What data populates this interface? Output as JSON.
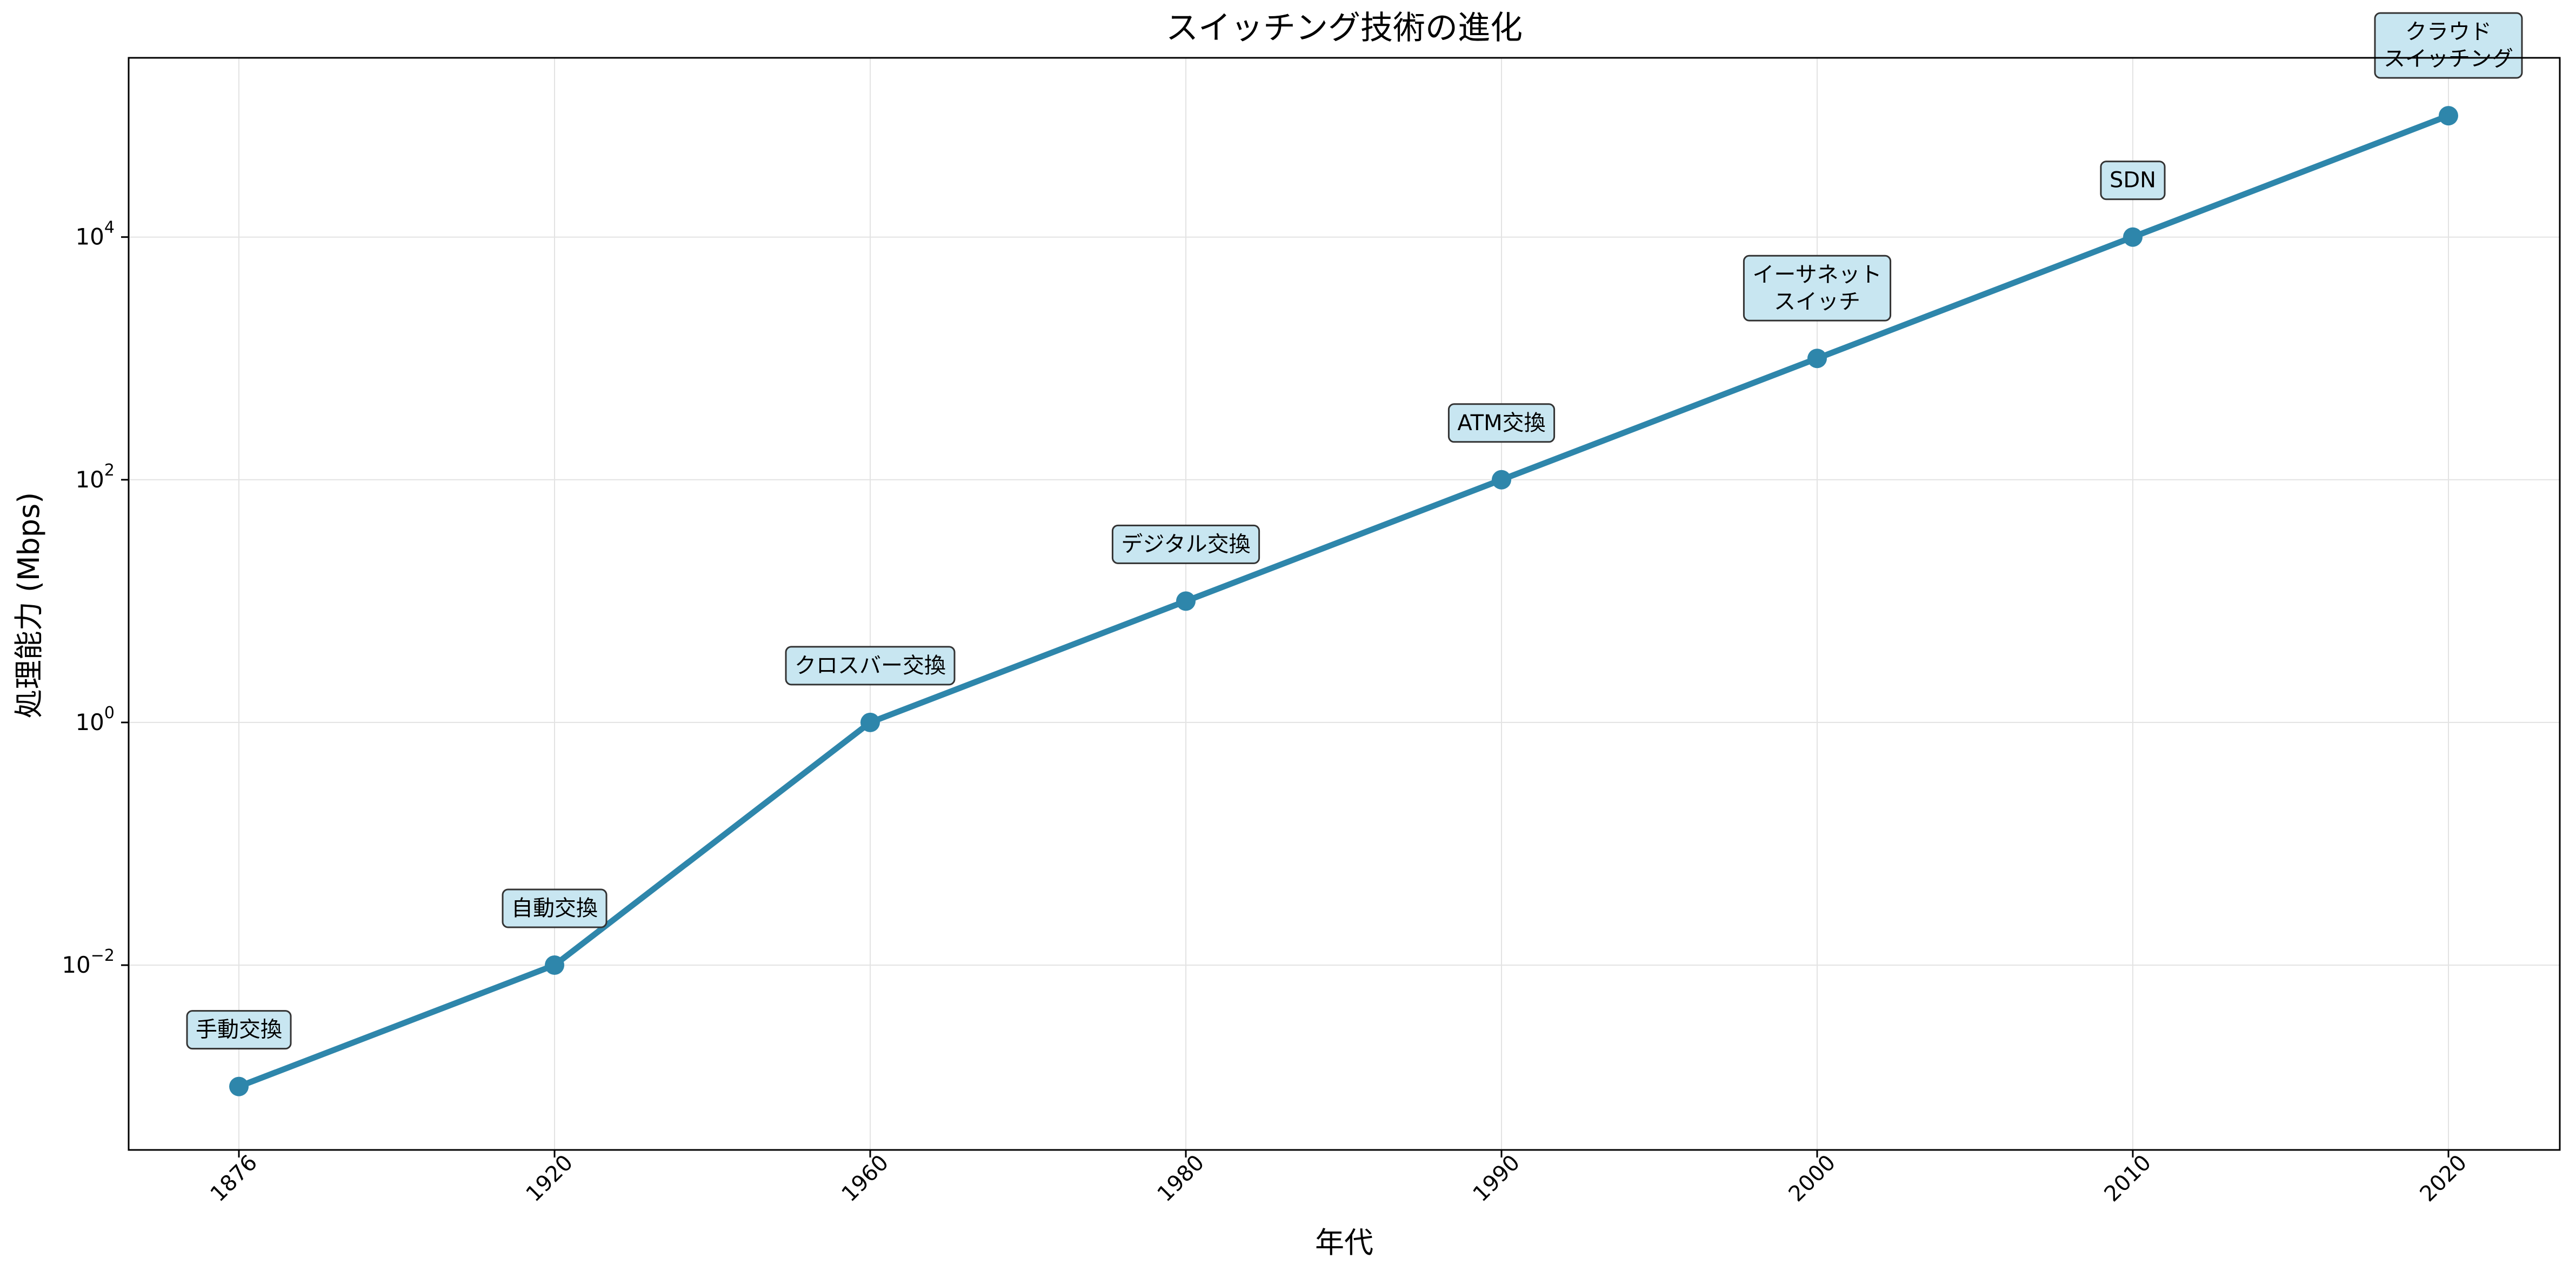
{
  "chart_data": {
    "type": "line",
    "title": "スイッチング技術の進化",
    "xlabel": "年代",
    "ylabel": "処理能力 (Mbps)",
    "yscale": "log",
    "ylim": [
      0.0003,
      300000
    ],
    "x_tick_rotation": 45,
    "grid": true,
    "color": "#2E86AB",
    "annotation_fill": "#C8E6F1",
    "categories": [
      "1876",
      "1920",
      "1960",
      "1980",
      "1990",
      "2000",
      "2010",
      "2020"
    ],
    "values": [
      0.001,
      0.01,
      1,
      10,
      100,
      1000,
      10000,
      100000
    ],
    "annotations": [
      "手動交換",
      "自動交換",
      "クロスバー交換",
      "デジタル交換",
      "ATM交換",
      "イーサネット\nスイッチ",
      "SDN",
      "クラウド\nスイッチング"
    ],
    "y_ticks": [
      {
        "value": 0.01,
        "base": "10",
        "exp": "−2"
      },
      {
        "value": 1,
        "base": "10",
        "exp": "0"
      },
      {
        "value": 100,
        "base": "10",
        "exp": "2"
      },
      {
        "value": 10000,
        "base": "10",
        "exp": "4"
      }
    ]
  }
}
